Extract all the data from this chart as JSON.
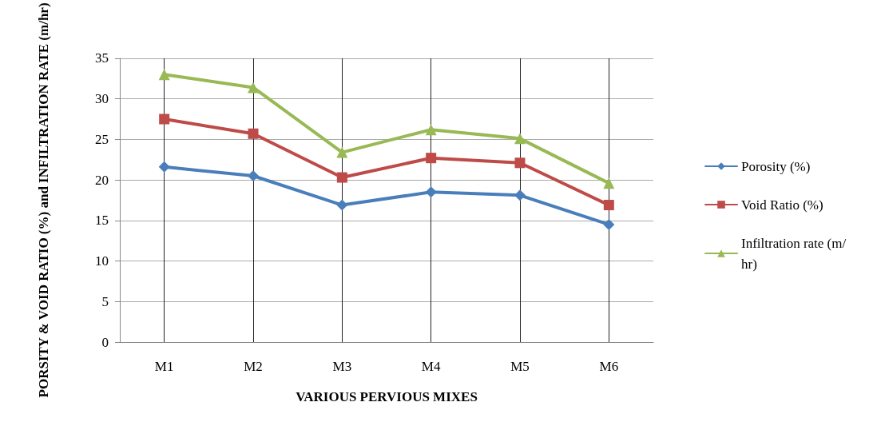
{
  "chart_data": {
    "type": "line",
    "xlabel": "VARIOUS PERVIOUS MIXES",
    "ylabel": "PORSITY & VOID RATIO (%) and INFILTRATION RATE (m/hr)",
    "categories": [
      "M1",
      "M2",
      "M3",
      "M4",
      "M5",
      "M6"
    ],
    "series": [
      {
        "name": "Porosity (%)",
        "color": "#4a7ebb",
        "marker": "diamond",
        "values": [
          21.6,
          20.5,
          16.9,
          18.5,
          18.1,
          14.5
        ]
      },
      {
        "name": "Void Ratio (%)",
        "color": "#be4b48",
        "marker": "square",
        "values": [
          27.5,
          25.7,
          20.3,
          22.7,
          22.1,
          16.9
        ]
      },
      {
        "name": "Infiltration rate (m/hr)",
        "color": "#98b954",
        "marker": "triangle",
        "values": [
          33.0,
          31.4,
          23.4,
          26.2,
          25.1,
          19.6
        ]
      }
    ],
    "ylim": [
      0,
      35
    ],
    "yticks": [
      0,
      5,
      10,
      15,
      20,
      25,
      30,
      35
    ],
    "grid": true,
    "legend": "right"
  }
}
